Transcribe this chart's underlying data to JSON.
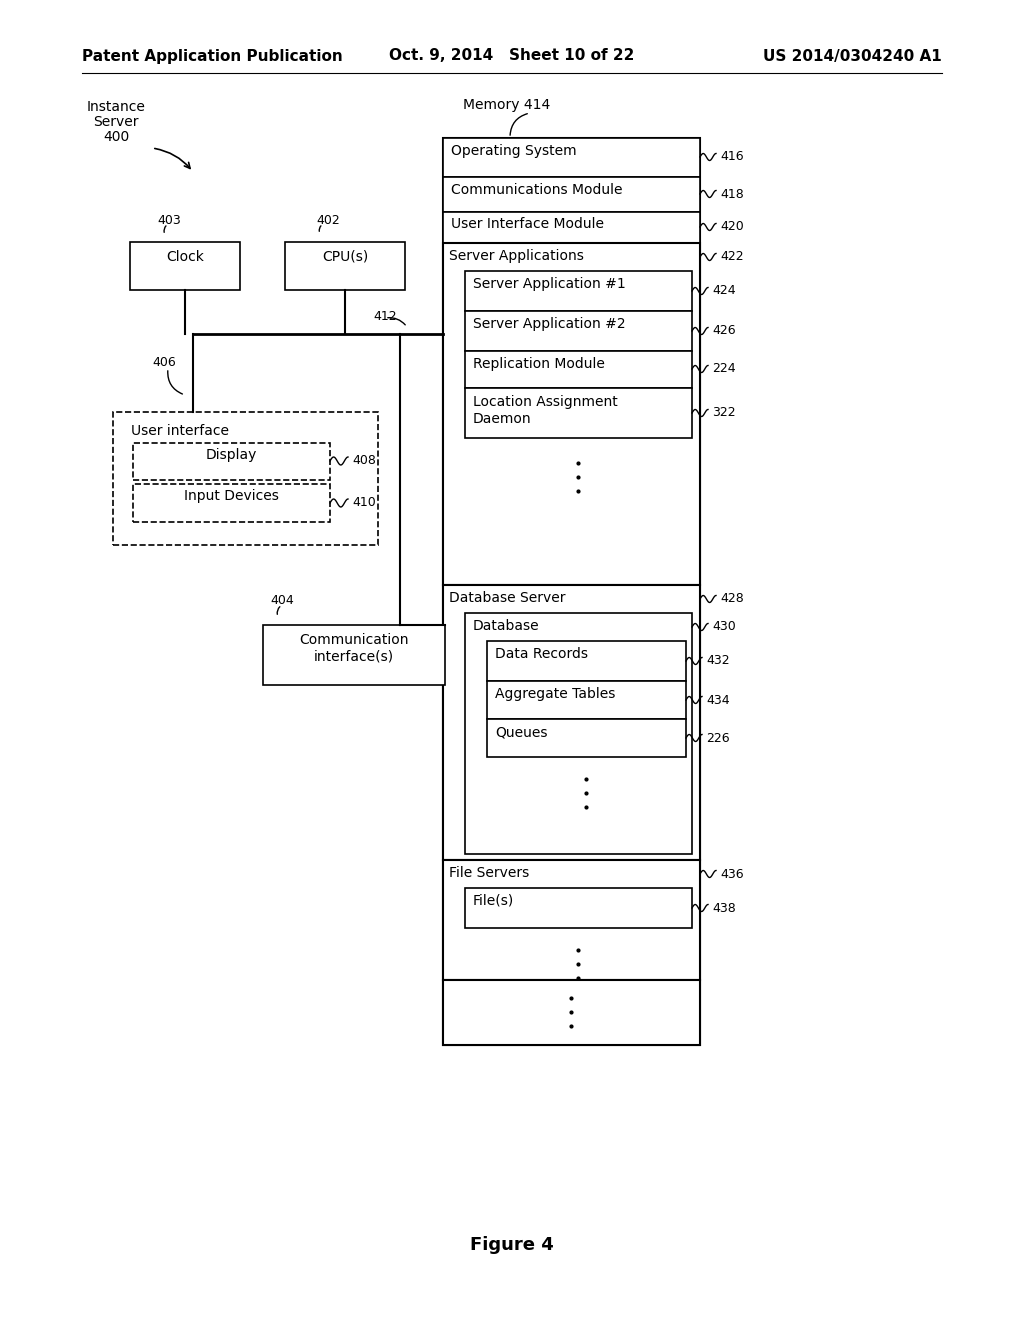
{
  "title_left": "Patent Application Publication",
  "title_center": "Oct. 9, 2014   Sheet 10 of 22",
  "title_right": "US 2014/0304240 A1",
  "figure_label": "Figure 4",
  "background": "#ffffff",
  "text_color": "#000000"
}
